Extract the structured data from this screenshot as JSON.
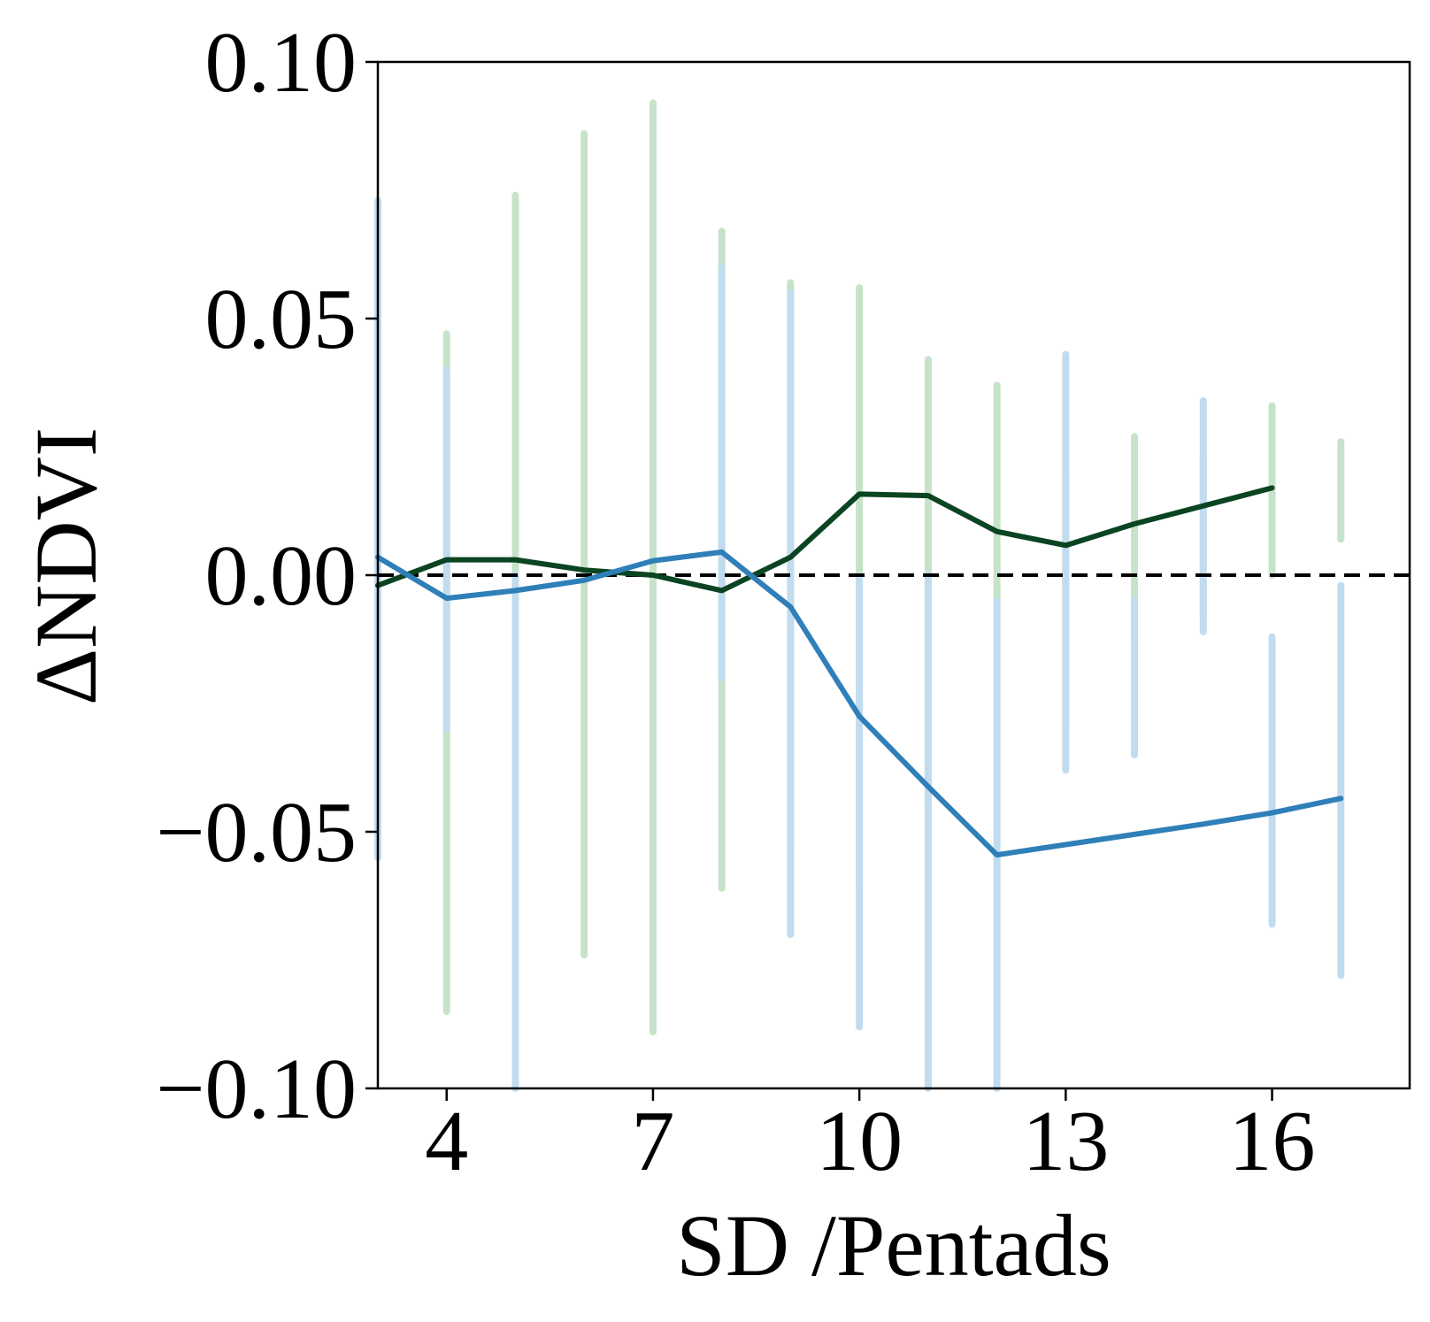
{
  "chart_data": {
    "type": "line",
    "title": "",
    "xlabel": "SD /Pentads",
    "ylabel": "ΔNDVI",
    "xlim": [
      3,
      18
    ],
    "ylim": [
      -0.1,
      0.1
    ],
    "xticks": [
      4,
      7,
      10,
      13,
      16
    ],
    "yticks": [
      0.1,
      0.05,
      0.0,
      -0.05,
      -0.1
    ],
    "xtick_labels": [
      "4",
      "7",
      "10",
      "13",
      "16"
    ],
    "ytick_labels": [
      "0.10",
      "0.05",
      "0.00",
      "−0.05",
      "−0.10"
    ],
    "grid": false,
    "legend": null,
    "reference_line": {
      "y": 0.0,
      "style": "dashed",
      "color": "#000000"
    },
    "series": [
      {
        "color": "#0b4421",
        "x": [
          3,
          4,
          5,
          6,
          7,
          8,
          9,
          10,
          11,
          12,
          13,
          14,
          15,
          16
        ],
        "values": [
          -0.002,
          0.003,
          0.003,
          0.001,
          0.0,
          -0.003,
          0.0035,
          0.0158,
          0.0155,
          0.0085,
          0.0058,
          0.01,
          0.0135,
          0.017
        ]
      },
      {
        "color": "#2f7fb8",
        "x": [
          3,
          4,
          5,
          6,
          7,
          8,
          9,
          10,
          11,
          12,
          13,
          14,
          15,
          16,
          17
        ],
        "values": [
          0.0035,
          -0.0045,
          -0.003,
          -0.001,
          0.0028,
          0.0045,
          -0.0062,
          -0.0275,
          -0.0412,
          -0.0545,
          -0.0525,
          -0.0505,
          -0.0485,
          -0.0463,
          -0.0435
        ]
      }
    ],
    "scatter_background": [
      {
        "color": "#c6e3c9",
        "columns": [
          {
            "x": 3,
            "min": -0.054,
            "max": 0.072
          },
          {
            "x": 4,
            "min": -0.085,
            "max": 0.047
          },
          {
            "x": 5,
            "min": -0.058,
            "max": 0.074
          },
          {
            "x": 6,
            "min": -0.074,
            "max": 0.086
          },
          {
            "x": 7,
            "min": -0.089,
            "max": 0.092
          },
          {
            "x": 8,
            "min": -0.061,
            "max": 0.067
          },
          {
            "x": 9,
            "min": -0.052,
            "max": 0.057
          },
          {
            "x": 10,
            "min": -0.06,
            "max": 0.056
          },
          {
            "x": 11,
            "min": -0.045,
            "max": 0.042
          },
          {
            "x": 12,
            "min": -0.035,
            "max": 0.037
          },
          {
            "x": 13,
            "min": -0.03,
            "max": 0.02
          },
          {
            "x": 14,
            "min": -0.012,
            "max": 0.027
          },
          {
            "x": 15,
            "min": -0.008,
            "max": 0.024
          },
          {
            "x": 16,
            "min": 0.0,
            "max": 0.033
          },
          {
            "x": 17,
            "min": 0.007,
            "max": 0.026
          }
        ]
      },
      {
        "color": "#c2dcef",
        "columns": [
          {
            "x": 3,
            "min": -0.055,
            "max": 0.073
          },
          {
            "x": 4,
            "min": -0.03,
            "max": 0.04
          },
          {
            "x": 5,
            "min": -0.1,
            "max": 0.0
          },
          {
            "x": 8,
            "min": -0.02,
            "max": 0.06
          },
          {
            "x": 9,
            "min": -0.07,
            "max": 0.055
          },
          {
            "x": 10,
            "min": -0.088,
            "max": 0.0
          },
          {
            "x": 11,
            "min": -0.1,
            "max": 0.0
          },
          {
            "x": 12,
            "min": -0.1,
            "max": -0.005
          },
          {
            "x": 13,
            "min": -0.038,
            "max": 0.043
          },
          {
            "x": 14,
            "min": -0.035,
            "max": -0.005
          },
          {
            "x": 15,
            "min": -0.011,
            "max": 0.034
          },
          {
            "x": 16,
            "min": -0.068,
            "max": -0.012
          },
          {
            "x": 17,
            "min": -0.078,
            "max": -0.002
          }
        ]
      }
    ]
  }
}
